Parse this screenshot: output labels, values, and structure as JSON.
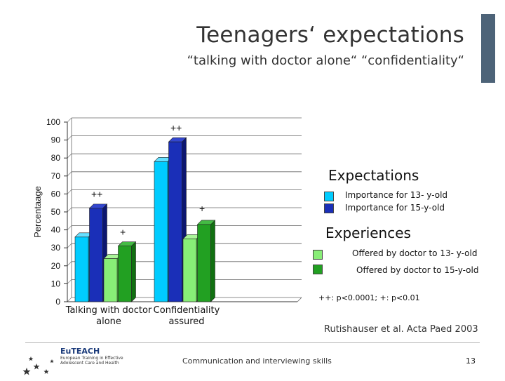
{
  "title": "Teenagers‘ expectations",
  "subtitle": "“talking with doctor alone“  “confidentiality“",
  "colors": {
    "accent_bar": "#4d6378",
    "importance_13": "#00ccff",
    "importance_15": "#1a2fb8",
    "offered_13": "#88ee77",
    "offered_15": "#22a022"
  },
  "legend": {
    "expectations_heading": "Expectations",
    "experiences_heading": "Experiences",
    "items": [
      {
        "label": "Importance for 13- y-old",
        "color": "#00ccff"
      },
      {
        "label": "Importance for 15-y-old",
        "color": "#1a2fb8"
      },
      {
        "label": "Offered by doctor to 13- y-old",
        "color": "#88ee77"
      },
      {
        "label": "Offered by doctor to 15-y-old",
        "color": "#22a022"
      }
    ]
  },
  "significance_note": "++: p<0.0001;   +: p<0.01",
  "citation": "Rutishauser et al. Acta Paed 2003",
  "footer": "Communication and interviewing skills",
  "page_number": "13",
  "logo": {
    "name": "EuTEACH",
    "tagline": "European Training in Effective Adolescent Care and Health"
  },
  "chart_data": {
    "type": "bar",
    "title": "",
    "xlabel": "",
    "ylabel": "Percentaage",
    "ylim": [
      0,
      100
    ],
    "yticks": [
      0,
      10,
      20,
      30,
      40,
      50,
      60,
      70,
      80,
      90,
      100
    ],
    "categories": [
      "Talking with doctor alone",
      "Confidentiality assured"
    ],
    "category_lines": [
      [
        "Talking with doctor",
        "alone"
      ],
      [
        "Confidentiality",
        "assured"
      ]
    ],
    "series": [
      {
        "name": "Importance for 13- y-old",
        "values": [
          36,
          78
        ]
      },
      {
        "name": "Importance for 15-y-old",
        "values": [
          52,
          89
        ]
      },
      {
        "name": "Offered by doctor to 13- y-old",
        "values": [
          24,
          35
        ]
      },
      {
        "name": "Offered by doctor to 15-y-old",
        "values": [
          31,
          43
        ]
      }
    ],
    "annotations": [
      {
        "category": 0,
        "after_series": 0,
        "marker": "++",
        "level": 58
      },
      {
        "category": 0,
        "after_series": 2,
        "marker": "+",
        "level": 37
      },
      {
        "category": 1,
        "after_series": 0,
        "marker": "++",
        "level": 95
      },
      {
        "category": 1,
        "after_series": 2,
        "marker": "+",
        "level": 50
      }
    ]
  }
}
